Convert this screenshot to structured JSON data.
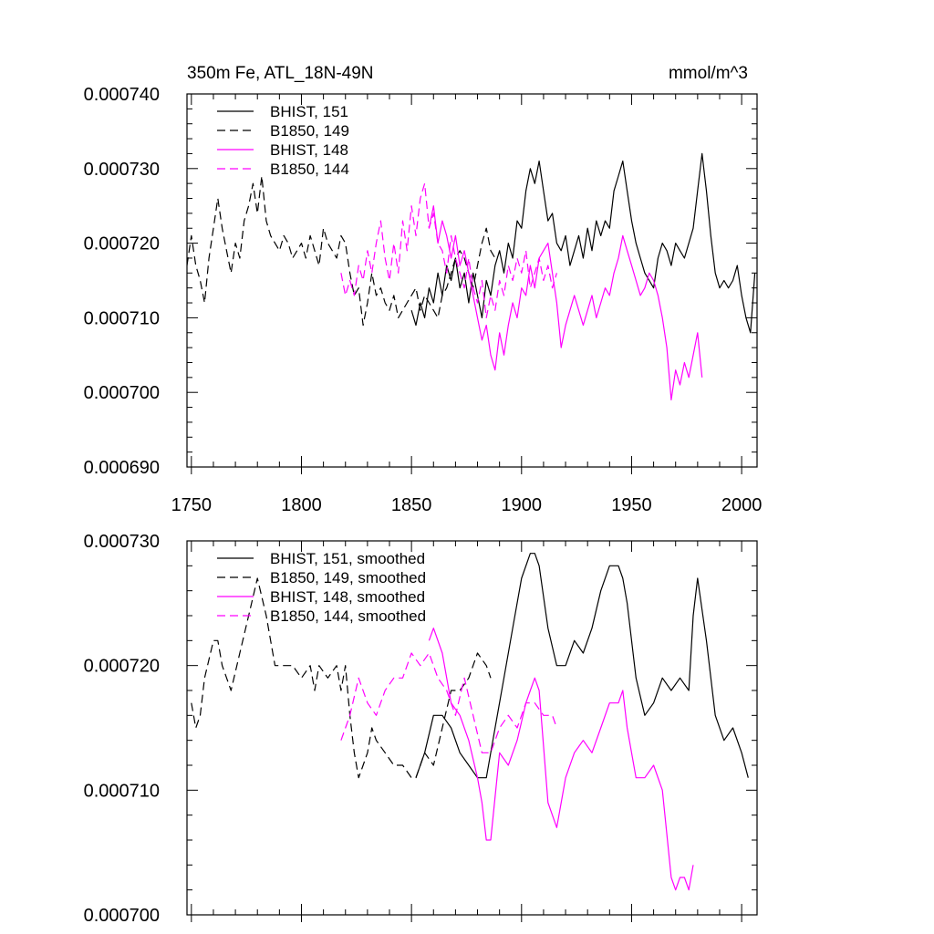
{
  "chart_data": [
    {
      "type": "line",
      "title": "350m Fe, ATL_18N-49N",
      "units_label": "mmol/m^3",
      "xlim": [
        1748,
        2007
      ],
      "ylim": [
        0.00069,
        0.00074
      ],
      "x_ticks": [
        1750,
        1800,
        1850,
        1900,
        1950,
        2000
      ],
      "x_tick_labels": [
        "1750",
        "1800",
        "1850",
        "1900",
        "1950",
        "2000"
      ],
      "y_ticks": [
        0.00069,
        0.0007,
        0.00071,
        0.00072,
        0.00073,
        0.00074
      ],
      "y_tick_labels": [
        "0.000690",
        "0.000700",
        "0.000710",
        "0.000720",
        "0.000730",
        "0.000740"
      ],
      "show_x_tick_labels": true,
      "legend_position": "top-left",
      "series": [
        {
          "name": "BHIST, 151",
          "color": "#000000",
          "dash": "solid",
          "x": [
            1850,
            1852,
            1854,
            1856,
            1858,
            1860,
            1862,
            1864,
            1866,
            1868,
            1870,
            1872,
            1874,
            1876,
            1878,
            1880,
            1882,
            1884,
            1886,
            1888,
            1890,
            1892,
            1894,
            1896,
            1898,
            1900,
            1902,
            1904,
            1906,
            1908,
            1910,
            1912,
            1914,
            1916,
            1918,
            1920,
            1922,
            1924,
            1926,
            1928,
            1930,
            1932,
            1934,
            1936,
            1938,
            1940,
            1942,
            1944,
            1946,
            1948,
            1950,
            1952,
            1954,
            1956,
            1958,
            1960,
            1962,
            1964,
            1966,
            1968,
            1970,
            1972,
            1974,
            1976,
            1978,
            1980,
            1982,
            1984,
            1986,
            1988,
            1990,
            1992,
            1994,
            1996,
            1998,
            2000,
            2002,
            2004,
            2006
          ],
          "y": [
            0.000711,
            0.000709,
            0.000712,
            0.00071,
            0.000714,
            0.000712,
            0.000716,
            0.000713,
            0.000717,
            0.000715,
            0.000718,
            0.000714,
            0.000716,
            0.000712,
            0.000716,
            0.000713,
            0.00071,
            0.000715,
            0.000713,
            0.000717,
            0.000719,
            0.000716,
            0.00072,
            0.000718,
            0.000723,
            0.000722,
            0.000727,
            0.00073,
            0.000728,
            0.000731,
            0.000727,
            0.000723,
            0.000724,
            0.00072,
            0.000719,
            0.000721,
            0.000717,
            0.000719,
            0.000721,
            0.000718,
            0.000722,
            0.000719,
            0.000723,
            0.000721,
            0.000723,
            0.000722,
            0.000727,
            0.000729,
            0.000731,
            0.000727,
            0.000723,
            0.00072,
            0.000718,
            0.000716,
            0.000715,
            0.000714,
            0.000718,
            0.00072,
            0.000719,
            0.000717,
            0.00072,
            0.000719,
            0.000718,
            0.00072,
            0.000722,
            0.000727,
            0.000732,
            0.000727,
            0.000721,
            0.000716,
            0.000714,
            0.000715,
            0.000714,
            0.000715,
            0.000717,
            0.000713,
            0.00071,
            0.000708,
            0.000716
          ]
        },
        {
          "name": "B1850, 149",
          "color": "#000000",
          "dash": "dashed",
          "x": [
            1748,
            1750,
            1752,
            1754,
            1756,
            1758,
            1760,
            1762,
            1764,
            1766,
            1768,
            1770,
            1772,
            1774,
            1776,
            1778,
            1780,
            1782,
            1784,
            1786,
            1788,
            1790,
            1792,
            1794,
            1796,
            1798,
            1800,
            1802,
            1804,
            1806,
            1808,
            1810,
            1812,
            1814,
            1816,
            1818,
            1820,
            1822,
            1824,
            1826,
            1828,
            1830,
            1832,
            1834,
            1836,
            1838,
            1840,
            1842,
            1844,
            1846,
            1848,
            1850,
            1852,
            1854,
            1856,
            1858,
            1860,
            1862,
            1864,
            1866,
            1868,
            1870,
            1872,
            1874,
            1876,
            1878,
            1880,
            1882,
            1884,
            1886,
            1888
          ],
          "y": [
            0.000717,
            0.000721,
            0.000717,
            0.000715,
            0.000712,
            0.000718,
            0.000722,
            0.000726,
            0.000722,
            0.000719,
            0.000716,
            0.00072,
            0.000718,
            0.000723,
            0.000725,
            0.000728,
            0.000724,
            0.000729,
            0.000723,
            0.000721,
            0.00072,
            0.000719,
            0.000721,
            0.00072,
            0.000718,
            0.000719,
            0.00072,
            0.000718,
            0.000721,
            0.000719,
            0.000717,
            0.000722,
            0.00072,
            0.000719,
            0.000718,
            0.000721,
            0.00072,
            0.000716,
            0.000713,
            0.000714,
            0.000709,
            0.000712,
            0.000716,
            0.000713,
            0.000714,
            0.000712,
            0.000711,
            0.000713,
            0.00071,
            0.000711,
            0.000712,
            0.000713,
            0.000714,
            0.000711,
            0.000713,
            0.000712,
            0.000711,
            0.00071,
            0.000713,
            0.000714,
            0.000716,
            0.000718,
            0.000719,
            0.000718,
            0.000716,
            0.000714,
            0.000717,
            0.00072,
            0.000722,
            0.000719,
            0.000718
          ]
        },
        {
          "name": "BHIST, 148",
          "color": "#ff00ff",
          "dash": "solid",
          "x": [
            1858,
            1860,
            1862,
            1864,
            1866,
            1868,
            1870,
            1872,
            1874,
            1876,
            1878,
            1880,
            1882,
            1884,
            1886,
            1888,
            1890,
            1892,
            1894,
            1896,
            1898,
            1900,
            1902,
            1904,
            1906,
            1908,
            1910,
            1912,
            1914,
            1916,
            1918,
            1920,
            1922,
            1924,
            1926,
            1928,
            1930,
            1932,
            1934,
            1936,
            1938,
            1940,
            1942,
            1944,
            1946,
            1948,
            1950,
            1952,
            1954,
            1956,
            1958,
            1960,
            1962,
            1964,
            1966,
            1968,
            1970,
            1972,
            1974,
            1976,
            1978,
            1980,
            1982
          ],
          "y": [
            0.000722,
            0.000725,
            0.00072,
            0.000723,
            0.000721,
            0.000718,
            0.000721,
            0.000717,
            0.000719,
            0.000716,
            0.000713,
            0.00071,
            0.000707,
            0.000709,
            0.000705,
            0.000703,
            0.000708,
            0.000705,
            0.000709,
            0.000712,
            0.00071,
            0.000714,
            0.000713,
            0.000717,
            0.000714,
            0.000718,
            0.000719,
            0.00072,
            0.000716,
            0.000712,
            0.000706,
            0.000709,
            0.000711,
            0.000713,
            0.000711,
            0.000709,
            0.000711,
            0.000713,
            0.00071,
            0.000712,
            0.000714,
            0.000713,
            0.000716,
            0.000718,
            0.000721,
            0.000719,
            0.000717,
            0.000715,
            0.000713,
            0.000714,
            0.000716,
            0.000715,
            0.000713,
            0.00071,
            0.000706,
            0.000699,
            0.000703,
            0.000701,
            0.000704,
            0.000702,
            0.000705,
            0.000708,
            0.000702
          ]
        },
        {
          "name": "B1850, 144",
          "color": "#ff00ff",
          "dash": "dashed",
          "x": [
            1818,
            1820,
            1822,
            1824,
            1826,
            1828,
            1830,
            1832,
            1834,
            1836,
            1838,
            1840,
            1842,
            1844,
            1846,
            1848,
            1850,
            1852,
            1854,
            1856,
            1858,
            1860,
            1862,
            1864,
            1866,
            1868,
            1870,
            1872,
            1874,
            1876,
            1878,
            1880,
            1882,
            1884,
            1886,
            1888,
            1890,
            1892,
            1894,
            1896,
            1898,
            1900,
            1902,
            1904,
            1906,
            1908,
            1910,
            1912,
            1914,
            1916
          ],
          "y": [
            0.000716,
            0.000713,
            0.000715,
            0.000713,
            0.000717,
            0.000715,
            0.000719,
            0.000716,
            0.00072,
            0.000723,
            0.000718,
            0.000715,
            0.00072,
            0.000716,
            0.000723,
            0.000719,
            0.000725,
            0.000721,
            0.000726,
            0.000728,
            0.000722,
            0.000724,
            0.00072,
            0.000719,
            0.000716,
            0.000721,
            0.000718,
            0.000716,
            0.000714,
            0.000718,
            0.000714,
            0.000712,
            0.000715,
            0.00071,
            0.000713,
            0.000711,
            0.000715,
            0.000713,
            0.000717,
            0.000715,
            0.000718,
            0.000716,
            0.000719,
            0.000714,
            0.000716,
            0.000718,
            0.000715,
            0.000717,
            0.000714,
            0.000716
          ]
        }
      ]
    },
    {
      "type": "line",
      "title": "",
      "units_label": "",
      "xlim": [
        1748,
        2007
      ],
      "ylim": [
        0.0007,
        0.00073
      ],
      "x_ticks": [
        1750,
        1800,
        1850,
        1900,
        1950,
        2000
      ],
      "x_tick_labels": [
        "1750",
        "1800",
        "1850",
        "1900",
        "1950",
        "2000"
      ],
      "y_ticks": [
        0.0007,
        0.00071,
        0.00072,
        0.00073
      ],
      "y_tick_labels": [
        "0.000700",
        "0.000710",
        "0.000720",
        "0.000730"
      ],
      "show_x_tick_labels": false,
      "legend_position": "top-left",
      "series": [
        {
          "name": "BHIST, 151, smoothed",
          "color": "#000000",
          "dash": "solid",
          "x": [
            1852,
            1856,
            1860,
            1864,
            1868,
            1872,
            1876,
            1880,
            1884,
            1886,
            1888,
            1892,
            1896,
            1900,
            1904,
            1906,
            1908,
            1912,
            1916,
            1920,
            1924,
            1928,
            1932,
            1936,
            1940,
            1944,
            1946,
            1948,
            1952,
            1956,
            1960,
            1964,
            1968,
            1972,
            1976,
            1978,
            1980,
            1984,
            1988,
            1992,
            1996,
            2000,
            2003
          ],
          "y": [
            0.000711,
            0.000713,
            0.000716,
            0.000716,
            0.000715,
            0.000713,
            0.000712,
            0.000711,
            0.000711,
            0.000713,
            0.000715,
            0.000719,
            0.000723,
            0.000727,
            0.000729,
            0.000729,
            0.000728,
            0.000723,
            0.00072,
            0.00072,
            0.000722,
            0.000721,
            0.000723,
            0.000726,
            0.000728,
            0.000728,
            0.000727,
            0.000725,
            0.000719,
            0.000716,
            0.000717,
            0.000719,
            0.000718,
            0.000719,
            0.000718,
            0.000724,
            0.000727,
            0.000722,
            0.000716,
            0.000714,
            0.000715,
            0.000713,
            0.000711
          ]
        },
        {
          "name": "B1850, 149, smoothed",
          "color": "#000000",
          "dash": "dashed",
          "x": [
            1750,
            1752,
            1754,
            1756,
            1760,
            1762,
            1764,
            1768,
            1772,
            1776,
            1780,
            1784,
            1788,
            1792,
            1796,
            1800,
            1804,
            1806,
            1808,
            1812,
            1816,
            1818,
            1820,
            1822,
            1824,
            1826,
            1828,
            1830,
            1832,
            1834,
            1838,
            1842,
            1846,
            1850,
            1852,
            1856,
            1860,
            1864,
            1868,
            1872,
            1876,
            1880,
            1884,
            1886
          ],
          "y": [
            0.000717,
            0.000715,
            0.000716,
            0.000719,
            0.000722,
            0.000722,
            0.00072,
            0.000718,
            0.000721,
            0.000724,
            0.000727,
            0.000724,
            0.00072,
            0.00072,
            0.00072,
            0.000719,
            0.00072,
            0.000718,
            0.00072,
            0.000719,
            0.00072,
            0.000718,
            0.00072,
            0.000716,
            0.000713,
            0.000711,
            0.000712,
            0.000713,
            0.000715,
            0.000714,
            0.000713,
            0.000712,
            0.000712,
            0.000711,
            0.000711,
            0.000713,
            0.000712,
            0.000715,
            0.000718,
            0.000718,
            0.000719,
            0.000721,
            0.00072,
            0.000719
          ]
        },
        {
          "name": "BHIST, 148, smoothed",
          "color": "#ff00ff",
          "dash": "solid",
          "x": [
            1858,
            1860,
            1864,
            1868,
            1872,
            1876,
            1880,
            1882,
            1884,
            1886,
            1890,
            1894,
            1898,
            1902,
            1904,
            1906,
            1908,
            1912,
            1916,
            1920,
            1924,
            1928,
            1932,
            1936,
            1940,
            1944,
            1946,
            1948,
            1952,
            1956,
            1960,
            1964,
            1968,
            1970,
            1972,
            1974,
            1976,
            1978
          ],
          "y": [
            0.000722,
            0.000723,
            0.000721,
            0.000717,
            0.000716,
            0.000714,
            0.000711,
            0.000709,
            0.000706,
            0.000706,
            0.000713,
            0.000712,
            0.000714,
            0.000717,
            0.000718,
            0.000719,
            0.000718,
            0.000709,
            0.000707,
            0.000711,
            0.000713,
            0.000714,
            0.000713,
            0.000715,
            0.000717,
            0.000717,
            0.000718,
            0.000715,
            0.000711,
            0.000711,
            0.000712,
            0.00071,
            0.000703,
            0.000702,
            0.000703,
            0.000703,
            0.000702,
            0.000704
          ]
        },
        {
          "name": "B1850, 144, smoothed",
          "color": "#ff00ff",
          "dash": "dashed",
          "x": [
            1818,
            1822,
            1826,
            1830,
            1834,
            1838,
            1842,
            1846,
            1850,
            1854,
            1858,
            1862,
            1866,
            1870,
            1874,
            1878,
            1882,
            1886,
            1890,
            1894,
            1898,
            1902,
            1906,
            1910,
            1914,
            1916
          ],
          "y": [
            0.000714,
            0.000716,
            0.000719,
            0.000717,
            0.000716,
            0.000718,
            0.000719,
            0.000719,
            0.000721,
            0.00072,
            0.000721,
            0.000719,
            0.000718,
            0.000716,
            0.000719,
            0.000716,
            0.000713,
            0.000713,
            0.000715,
            0.000716,
            0.000715,
            0.000717,
            0.000717,
            0.000716,
            0.000716,
            0.000715
          ]
        }
      ]
    }
  ]
}
